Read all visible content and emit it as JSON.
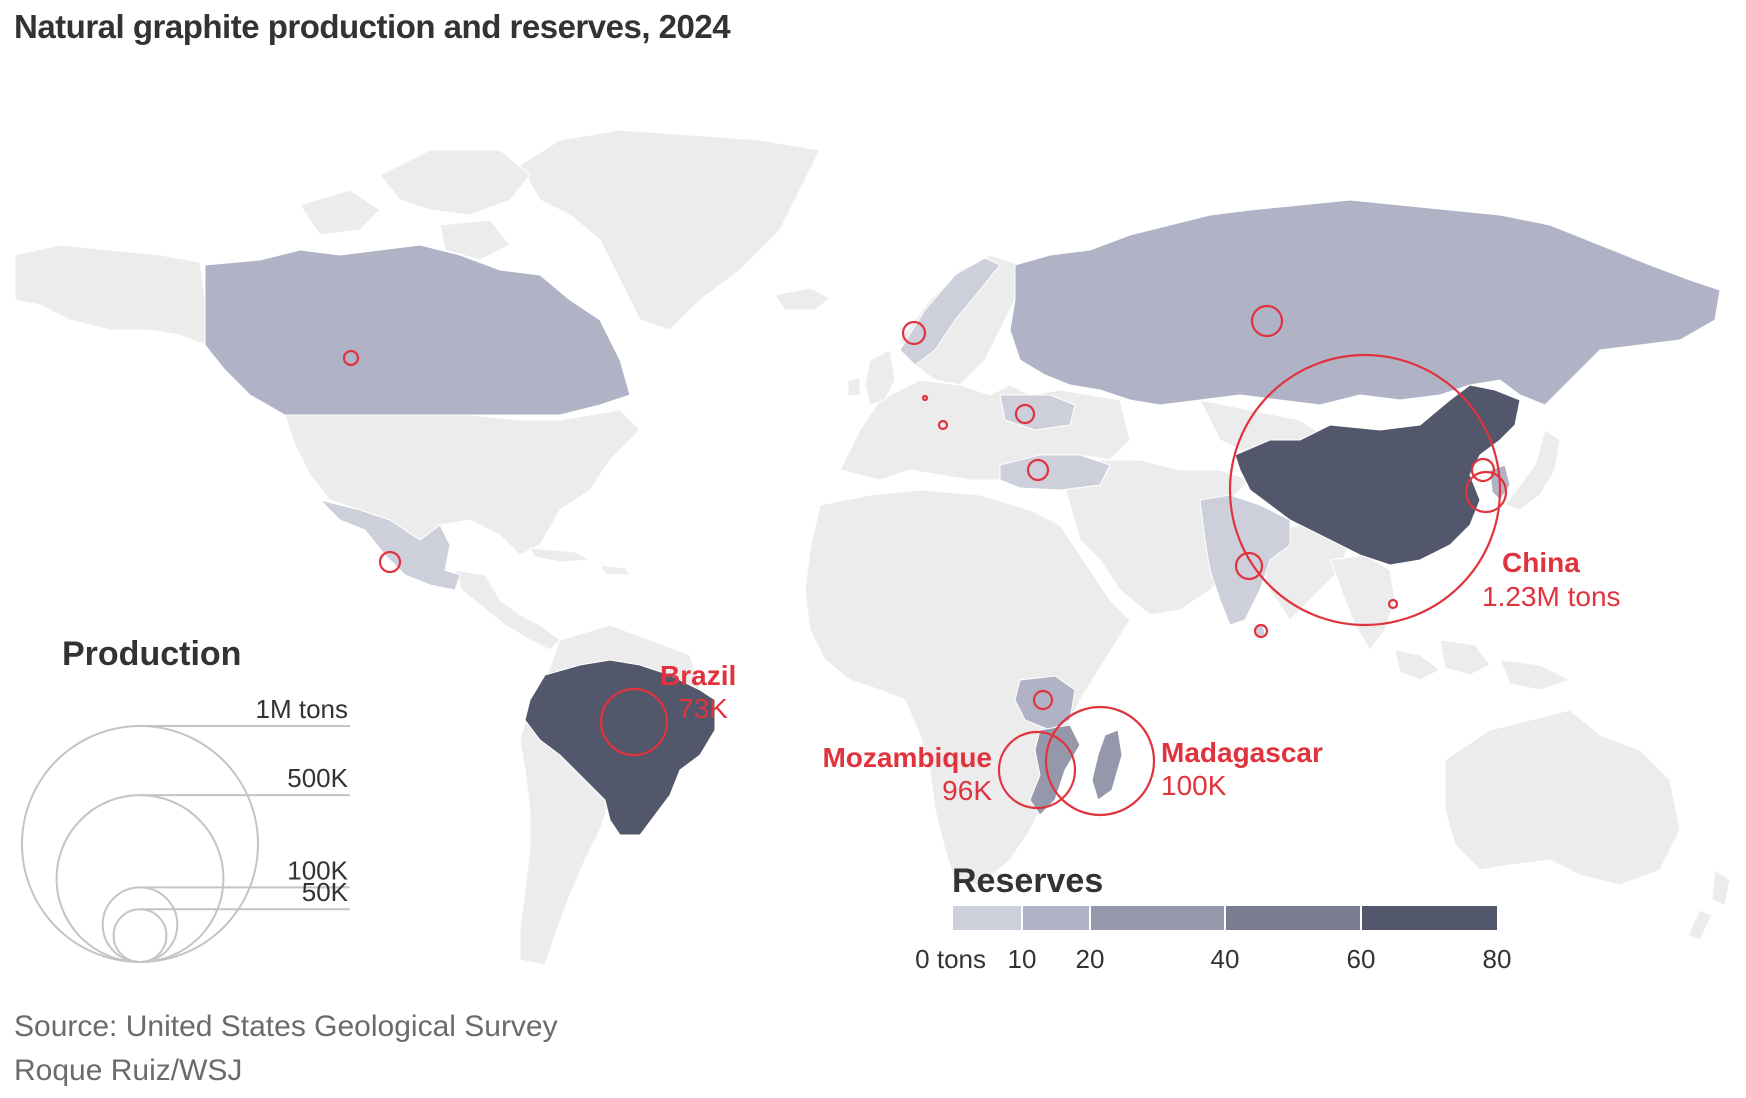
{
  "title": "Natural graphite production and reserves, 2024",
  "colors": {
    "land": "#ececed",
    "reserve_0_10": "#cdcfdb",
    "reserve_10_20": "#b0b2c6",
    "reserve_20_40": "#9597ab",
    "reserve_40_60": "#7a7c91",
    "reserve_60_80": "#53576b",
    "production_circle": "#e0333d",
    "legend_circle": "#c4c4c4"
  },
  "labels": {
    "brazil": {
      "name": "Brazil",
      "value": "73K"
    },
    "china": {
      "name": "China",
      "value": "1.23M tons"
    },
    "mozambique": {
      "name": "Mozambique",
      "value": "96K"
    },
    "madagascar": {
      "name": "Madagascar",
      "value": "100K"
    }
  },
  "production_legend": {
    "title": "Production",
    "sizes": [
      {
        "label": "1M tons",
        "value": 1000000
      },
      {
        "label": "500K",
        "value": 500000
      },
      {
        "label": "100K",
        "value": 100000
      },
      {
        "label": "50K",
        "value": 50000
      }
    ]
  },
  "reserves_legend": {
    "title": "Reserves",
    "ticks": [
      "0 tons",
      "10",
      "20",
      "40",
      "60",
      "80"
    ]
  },
  "footer": {
    "source": "Source: United States Geological Survey",
    "credit": "Roque Ruiz/WSJ"
  }
}
